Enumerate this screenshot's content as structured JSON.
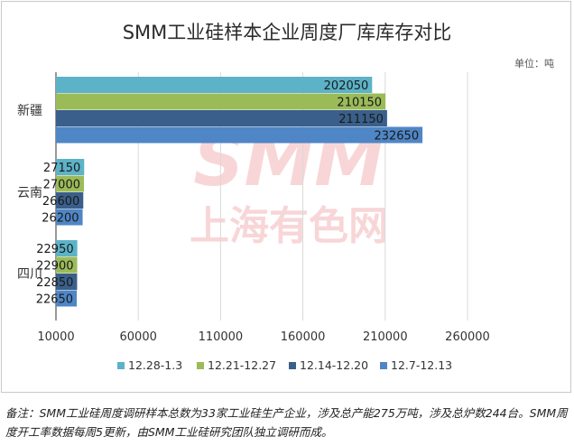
{
  "chart_data": {
    "type": "bar",
    "orientation": "horizontal",
    "title": "SMM工业硅样本企业周度厂库库存对比",
    "unit_note": "单位：吨",
    "categories": [
      "新疆",
      "云南",
      "四川"
    ],
    "series": [
      {
        "name": "12.28-1.3",
        "color": "#5cb3c8",
        "values": [
          202050,
          27150,
          22950
        ]
      },
      {
        "name": "12.21-12.27",
        "color": "#9bbb59",
        "values": [
          210150,
          27000,
          22900
        ]
      },
      {
        "name": "12.14-12.20",
        "color": "#3a5f8a",
        "values": [
          211150,
          26600,
          22850
        ]
      },
      {
        "name": "12.7-12.13",
        "color": "#4f86c6",
        "values": [
          232650,
          26200,
          22650
        ]
      }
    ],
    "xlim": [
      10000,
      260000
    ],
    "xticks": [
      "10000",
      "60000",
      "110000",
      "160000",
      "210000",
      "260000"
    ],
    "grid": true,
    "legend_position": "bottom",
    "watermark": "SMM 上海有色网"
  },
  "footnote": "备注：SMM工业硅周度调研样本总数为33家工业硅生产企业，涉及总产能275万吨，涉及总炉数244台。SMM周度开工率数据每周5更新，由SMM工业硅研究团队独立调研而成。"
}
